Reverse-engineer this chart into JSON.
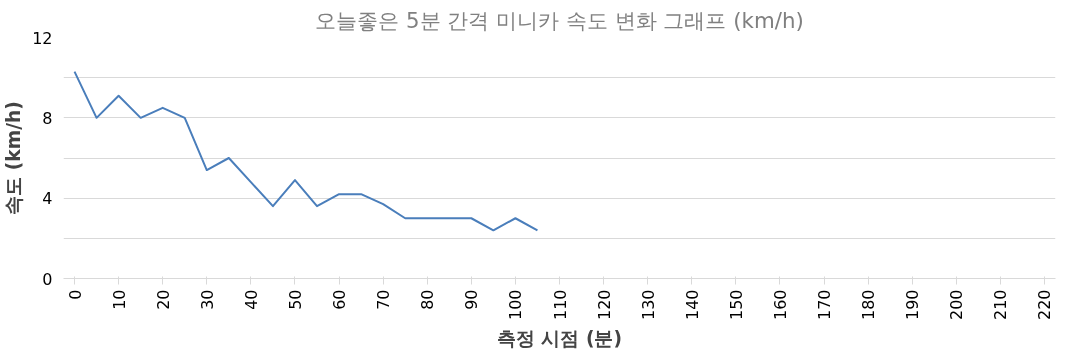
{
  "chart_data": {
    "type": "line",
    "title": "오늘좋은 5분 간격 미니카 속도 변화 그래프 (km/h)",
    "xlabel": "측정 시점 (분)",
    "ylabel": "속도 (km/h)",
    "x": [
      0,
      5,
      10,
      15,
      20,
      25,
      30,
      35,
      40,
      45,
      50,
      55,
      60,
      65,
      70,
      75,
      80,
      85,
      90,
      95,
      100,
      105
    ],
    "series": [
      {
        "color": "#4a7ebb",
        "values": [
          10.3,
          8,
          9.1,
          8,
          8.5,
          8,
          5.4,
          6,
          4.8,
          3.6,
          4.9,
          3.6,
          4.2,
          4.2,
          3.7,
          3,
          3,
          3,
          3,
          2.4,
          3,
          2.4
        ]
      }
    ],
    "xlim": [
      -2.5,
      222.5
    ],
    "xticks": [
      0,
      10,
      20,
      30,
      40,
      50,
      60,
      70,
      80,
      90,
      100,
      110,
      120,
      130,
      140,
      150,
      160,
      170,
      180,
      190,
      200,
      210,
      220
    ],
    "ylim": [
      0,
      12
    ],
    "yticks": [
      0,
      {
        "value": 2,
        "label": null
      },
      4,
      {
        "value": 6,
        "label": null
      },
      8,
      {
        "value": 10,
        "label": null
      },
      12
    ],
    "grid": "y",
    "marker": "none",
    "line_style": "solid"
  }
}
